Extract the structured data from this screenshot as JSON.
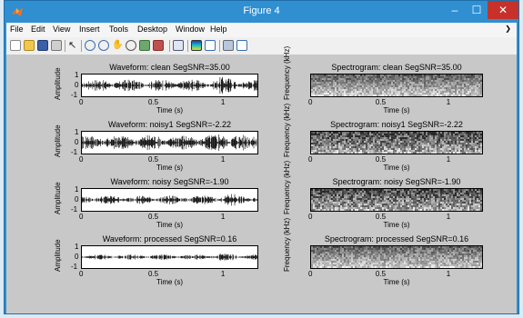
{
  "window": {
    "title": "Figure 4",
    "controls": {
      "minimize": "–",
      "maximize": "☐",
      "close": "✕"
    }
  },
  "menubar": {
    "items": [
      "File",
      "Edit",
      "View",
      "Insert",
      "Tools",
      "Desktop",
      "Window",
      "Help"
    ],
    "overflow_arrow": "❯"
  },
  "toolbar": {
    "tools": [
      "new-figure-icon",
      "open-file-icon",
      "save-icon",
      "print-icon",
      "edit-plot-arrow-icon",
      "zoom-in-icon",
      "zoom-out-icon",
      "pan-icon",
      "rotate-3d-icon",
      "data-cursor-icon",
      "brush-icon",
      "link-plot-icon",
      "insert-colorbar-icon",
      "insert-legend-icon",
      "hide-plot-tools-icon",
      "show-plot-tools-icon"
    ]
  },
  "colors": {
    "title_bar": "#2f8fd1",
    "close_button": "#c7312a",
    "canvas": "#c8c8c8",
    "signal": "#000000"
  },
  "waveforms": [
    {
      "title": "Waveform: clean  SegSNR=35.00",
      "ylabel": "Amplitude",
      "yticks": [
        "1",
        "0",
        "-1"
      ],
      "xticks": [
        "0",
        "0.5",
        "1"
      ],
      "xlabel": "Time (s)",
      "level": 0.55
    },
    {
      "title": "Waveform: noisy1  SegSNR=-2.22",
      "ylabel": "Amplitude",
      "yticks": [
        "1",
        "0",
        "-1"
      ],
      "xticks": [
        "0",
        "0.5",
        "1"
      ],
      "xlabel": "Time (s)",
      "level": 0.75
    },
    {
      "title": "Waveform: noisy  SegSNR=-1.90",
      "ylabel": "Amplitude",
      "yticks": [
        "1",
        "0",
        "-1"
      ],
      "xticks": [
        "0",
        "0.5",
        "1"
      ],
      "xlabel": "Time (s)",
      "level": 0.4
    },
    {
      "title": "Waveform: processed  SegSNR=0.16",
      "ylabel": "Amplitude",
      "yticks": [
        "1",
        "0",
        "-1"
      ],
      "xticks": [
        "0",
        "0.5",
        "1"
      ],
      "xlabel": "Time (s)",
      "level": 0.25
    }
  ],
  "spectrograms": [
    {
      "title": "Spectrogram: clean  SegSNR=35.00",
      "ylabel": "Frequency (kHz)",
      "xticks": [
        "0",
        "0.5",
        "1"
      ],
      "xlabel": "Time (s)"
    },
    {
      "title": "Spectrogram: noisy1  SegSNR=-2.22",
      "ylabel": "Frequency (kHz)",
      "xticks": [
        "0",
        "0.5",
        "1"
      ],
      "xlabel": "Time (s)"
    },
    {
      "title": "Spectrogram: noisy  SegSNR=-1.90",
      "ylabel": "Frequency (kHz)",
      "xticks": [
        "0",
        "0.5",
        "1"
      ],
      "xlabel": "Time (s)"
    },
    {
      "title": "Spectrogram: processed  SegSNR=0.16",
      "ylabel": "Frequency (kHz)",
      "xticks": [
        "0",
        "0.5",
        "1"
      ],
      "xlabel": "Time (s)"
    }
  ]
}
